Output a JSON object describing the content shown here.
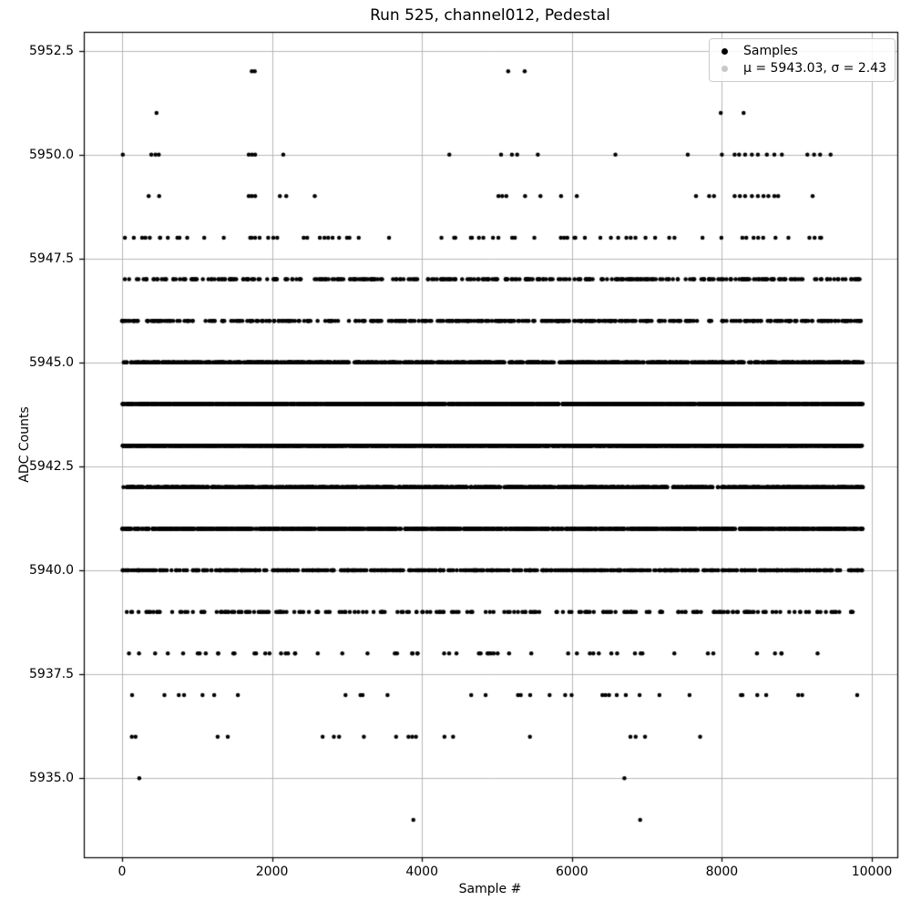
{
  "chart_data": {
    "type": "scatter",
    "title": "Run 525, channel012, Pedestal",
    "xlabel": "Sample #",
    "ylabel": "ADC Counts",
    "xlim": [
      -510,
      10340
    ],
    "ylim": [
      5933.1,
      5952.95
    ],
    "x_ticks": [
      0,
      2000,
      4000,
      6000,
      8000,
      10000
    ],
    "x_tick_labels": [
      "0",
      "2000",
      "4000",
      "6000",
      "8000",
      "10000"
    ],
    "y_ticks": [
      5952.5,
      5950.0,
      5947.5,
      5945.0,
      5942.5,
      5940.0,
      5937.5,
      5935.0
    ],
    "y_tick_labels": [
      "5952.5",
      "5950.0",
      "5947.5",
      "5945.0",
      "5942.5",
      "5940.0",
      "5937.5",
      "5935.0"
    ],
    "grid": true,
    "grid_color": "#b0b0b0",
    "spine_color": "#000000",
    "marker_color": "#000000",
    "marker_radius": 2.25,
    "sample_range": [
      0,
      9880
    ],
    "random_seed": 42,
    "stats": {
      "mu": 5943.03,
      "sigma": 2.43
    },
    "levels": [
      {
        "adc": 5952,
        "x": [
          1730,
          1770,
          5150,
          5370
        ]
      },
      {
        "adc": 5951,
        "x": [
          460,
          7985,
          8290
        ]
      },
      {
        "adc": 5950,
        "x": [
          10,
          390,
          445,
          490,
          1690,
          1735,
          1775,
          2150,
          4365,
          5055,
          5200,
          5270,
          5545,
          6580,
          7545,
          8000,
          8170,
          8230,
          8310,
          8400,
          8480,
          8600,
          8700,
          8800,
          9140,
          9230,
          9310,
          9450
        ]
      },
      {
        "adc": 5949,
        "x": [
          355,
          495,
          1690,
          1730,
          1775,
          2105,
          2190,
          2570,
          5020,
          5070,
          5125,
          5375,
          5580,
          5855,
          6065,
          7655,
          7830,
          7895,
          8170,
          8240,
          8310,
          8400,
          8480,
          8555,
          8620,
          8700,
          8750,
          9210
        ]
      },
      {
        "adc": 5948,
        "n": 72
      },
      {
        "adc": 5947,
        "n": 340
      },
      {
        "adc": 5946,
        "n": 420
      },
      {
        "adc": 5945,
        "n": 1100
      },
      {
        "adc": 5944,
        "n": 1900
      },
      {
        "adc": 5943,
        "n": 2300
      },
      {
        "adc": 5942,
        "n": 1400
      },
      {
        "adc": 5941,
        "n": 1300
      },
      {
        "adc": 5940,
        "n": 620
      },
      {
        "adc": 5939,
        "n": 230
      },
      {
        "adc": 5938,
        "n": 60
      },
      {
        "adc": 5937,
        "n": 34
      },
      {
        "adc": 5936,
        "x": [
          130,
          180,
          1275,
          1410,
          2675,
          2825,
          2895,
          3225,
          3655,
          3820,
          3870,
          3920,
          4300,
          4415,
          5440,
          6780,
          6850,
          6975,
          7710
        ]
      },
      {
        "adc": 5935,
        "x": [
          230,
          6700
        ]
      },
      {
        "adc": 5934,
        "x": [
          3885,
          6910
        ]
      }
    ]
  },
  "legend": {
    "position": "top-right",
    "entries": [
      {
        "label": "Samples",
        "marker_color": "#000000"
      },
      {
        "label": "μ = 5943.03, σ = 2.43",
        "marker_color": "#c8c8c8"
      }
    ]
  }
}
